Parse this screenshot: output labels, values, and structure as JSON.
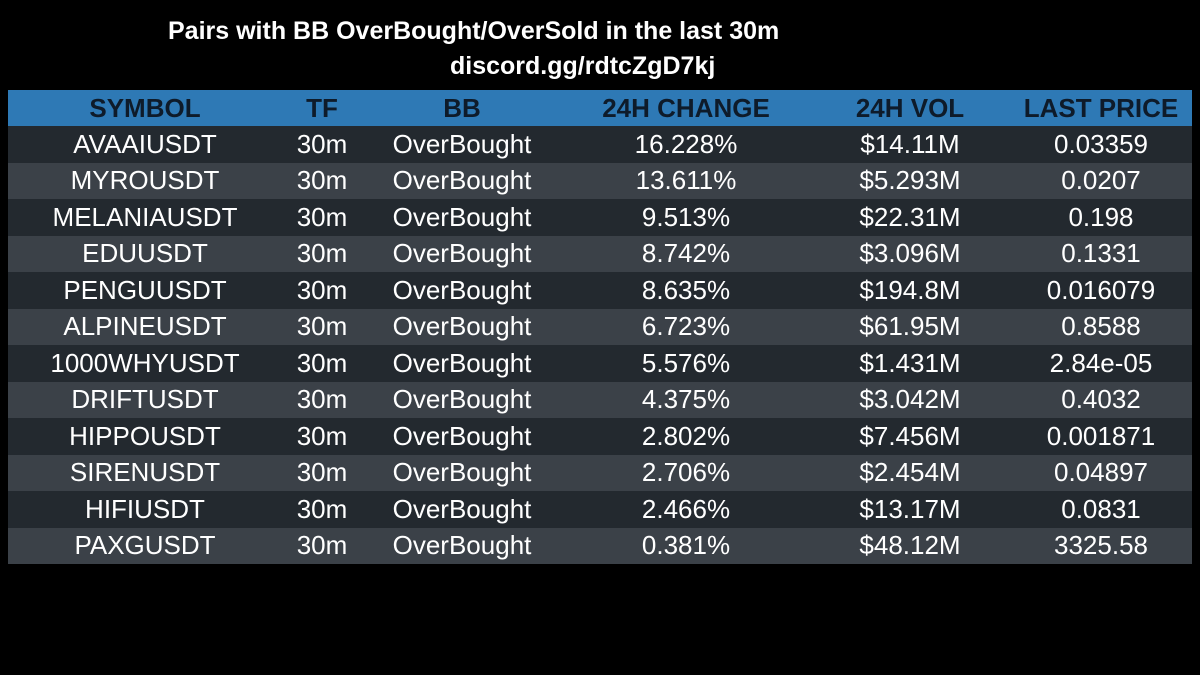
{
  "header": {
    "title": "Pairs with BB OverBought/OverSold in the last 30m",
    "subtitle": "discord.gg/rdtcZgD7kj"
  },
  "table": {
    "columns": [
      "SYMBOL",
      "TF",
      "BB",
      "24H CHANGE",
      "24H VOL",
      "LAST PRICE"
    ],
    "rows": [
      [
        "AVAAIUSDT",
        "30m",
        "OverBought",
        "16.228%",
        "$14.11M",
        "0.03359"
      ],
      [
        "MYROUSDT",
        "30m",
        "OverBought",
        "13.611%",
        "$5.293M",
        "0.0207"
      ],
      [
        "MELANIAUSDT",
        "30m",
        "OverBought",
        "9.513%",
        "$22.31M",
        "0.198"
      ],
      [
        "EDUUSDT",
        "30m",
        "OverBought",
        "8.742%",
        "$3.096M",
        "0.1331"
      ],
      [
        "PENGUUSDT",
        "30m",
        "OverBought",
        "8.635%",
        "$194.8M",
        "0.016079"
      ],
      [
        "ALPINEUSDT",
        "30m",
        "OverBought",
        "6.723%",
        "$61.95M",
        "0.8588"
      ],
      [
        "1000WHYUSDT",
        "30m",
        "OverBought",
        "5.576%",
        "$1.431M",
        "2.84e-05"
      ],
      [
        "DRIFTUSDT",
        "30m",
        "OverBought",
        "4.375%",
        "$3.042M",
        "0.4032"
      ],
      [
        "HIPPOUSDT",
        "30m",
        "OverBought",
        "2.802%",
        "$7.456M",
        "0.001871"
      ],
      [
        "SIRENUSDT",
        "30m",
        "OverBought",
        "2.706%",
        "$2.454M",
        "0.04897"
      ],
      [
        "HIFIUSDT",
        "30m",
        "OverBought",
        "2.466%",
        "$13.17M",
        "0.0831"
      ],
      [
        "PAXGUSDT",
        "30m",
        "OverBought",
        "0.381%",
        "$48.12M",
        "3325.58"
      ]
    ]
  },
  "colors": {
    "background": "#000000",
    "header_bg": "#2e79b5",
    "header_text": "#0e1b2a",
    "row_dark": "#23292f",
    "row_light": "#3b4148",
    "text": "#ffffff"
  }
}
